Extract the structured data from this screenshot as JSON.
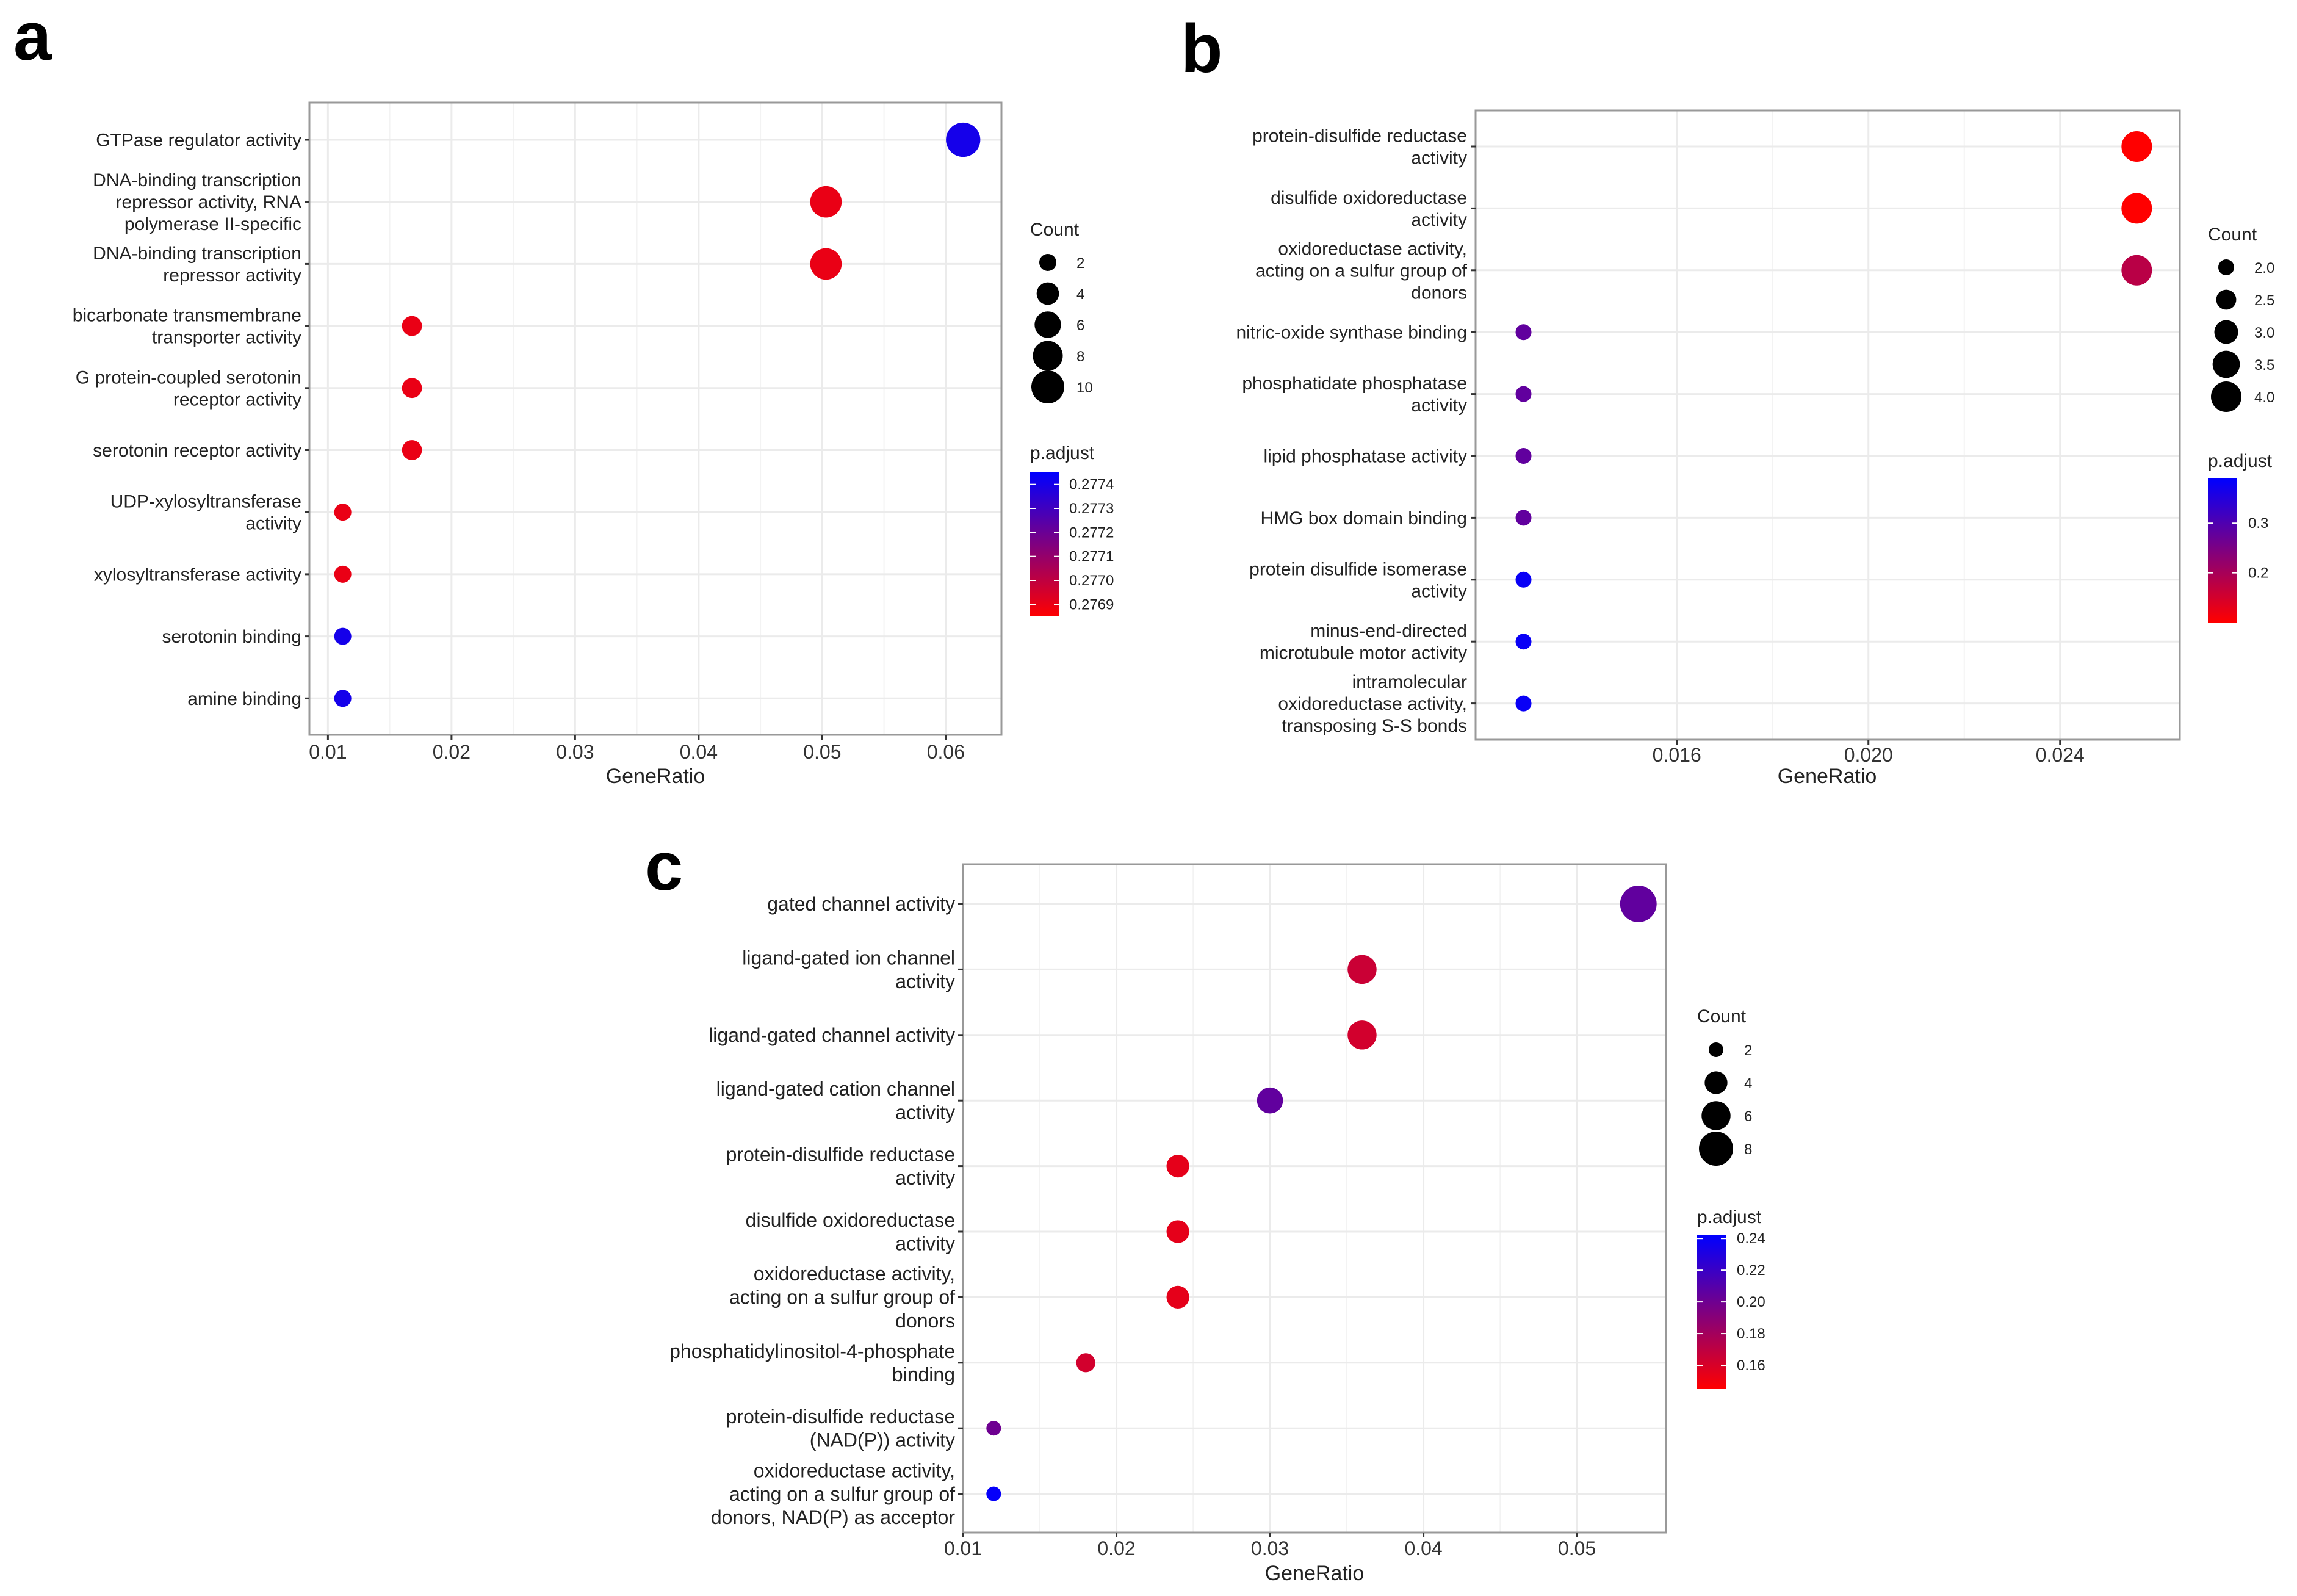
{
  "chart_data": [
    {
      "panel": "a",
      "type": "scatter",
      "xlabel": "GeneRatio",
      "xlim": [
        0.0085,
        0.0645
      ],
      "xticks": [
        0.01,
        0.02,
        0.03,
        0.04,
        0.05,
        0.06
      ],
      "xtick_labels": [
        "0.01",
        "0.02",
        "0.03",
        "0.04",
        "0.05",
        "0.06"
      ],
      "grid": true,
      "categories": [
        [
          "GTPase regulator activity"
        ],
        [
          "DNA-binding transcription",
          "repressor activity, RNA",
          "polymerase II-specific"
        ],
        [
          "DNA-binding transcription",
          "repressor activity"
        ],
        [
          "bicarbonate transmembrane",
          "transporter activity"
        ],
        [
          "G protein-coupled serotonin",
          "receptor activity"
        ],
        [
          "serotonin receptor activity"
        ],
        [
          "UDP-xylosyltransferase",
          "activity"
        ],
        [
          "xylosyltransferase activity"
        ],
        [
          "serotonin binding"
        ],
        [
          "amine binding"
        ]
      ],
      "x": [
        0.0614,
        0.0503,
        0.0503,
        0.0168,
        0.0168,
        0.0168,
        0.0112,
        0.0112,
        0.0112,
        0.0112
      ],
      "count": [
        11,
        9,
        9,
        3,
        3,
        3,
        2,
        2,
        2,
        2
      ],
      "p_adjust": [
        0.2774,
        0.2769,
        0.2769,
        0.2769,
        0.2769,
        0.2769,
        0.2769,
        0.2769,
        0.2774,
        0.2774
      ],
      "size_legend": {
        "title": "Count",
        "values": [
          2,
          4,
          6,
          8,
          10
        ],
        "labels": [
          "2",
          "4",
          "6",
          "8",
          "10"
        ]
      },
      "color_legend": {
        "title": "p.adjust",
        "min": 0.27685,
        "max": 0.27745,
        "ticks": [
          0.2774,
          0.2773,
          0.2772,
          0.2771,
          0.277,
          0.2769
        ],
        "labels": [
          "0.2774",
          "0.2773",
          "0.2772",
          "0.2771",
          "0.2770",
          "0.2769"
        ]
      }
    },
    {
      "panel": "b",
      "type": "scatter",
      "xlabel": "GeneRatio",
      "xlim": [
        0.0118,
        0.0265
      ],
      "xticks": [
        0.016,
        0.02,
        0.024
      ],
      "xtick_labels": [
        "0.016",
        "0.020",
        "0.024"
      ],
      "grid": true,
      "categories": [
        [
          "protein-disulfide reductase",
          "activity"
        ],
        [
          "disulfide oxidoreductase",
          "activity"
        ],
        [
          "oxidoreductase activity,",
          "acting on a sulfur group of",
          "donors"
        ],
        [
          "nitric-oxide synthase binding"
        ],
        [
          "phosphatidate phosphatase",
          "activity"
        ],
        [
          "lipid phosphatase activity"
        ],
        [
          "HMG box domain binding"
        ],
        [
          "protein disulfide isomerase",
          "activity"
        ],
        [
          "minus-end-directed",
          "microtubule motor activity"
        ],
        [
          "intramolecular",
          "oxidoreductase activity,",
          "transposing S-S bonds"
        ]
      ],
      "x": [
        0.0256,
        0.0256,
        0.0256,
        0.0128,
        0.0128,
        0.0128,
        0.0128,
        0.0128,
        0.0128,
        0.0128
      ],
      "count": [
        4,
        4,
        4,
        2,
        2,
        2,
        2,
        2,
        2,
        2
      ],
      "p_adjust": [
        0.1,
        0.1,
        0.18,
        0.28,
        0.28,
        0.28,
        0.28,
        0.38,
        0.38,
        0.38
      ],
      "size_legend": {
        "title": "Count",
        "values": [
          2.0,
          2.5,
          3.0,
          3.5,
          4.0
        ],
        "labels": [
          "2.0",
          "2.5",
          "3.0",
          "3.5",
          "4.0"
        ]
      },
      "color_legend": {
        "title": "p.adjust",
        "min": 0.1,
        "max": 0.39,
        "ticks": [
          0.3,
          0.2
        ],
        "labels": [
          "0.3",
          "0.2"
        ]
      }
    },
    {
      "panel": "c",
      "type": "scatter",
      "xlabel": "GeneRatio",
      "xlim": [
        0.01,
        0.0558
      ],
      "xticks": [
        0.01,
        0.02,
        0.03,
        0.04,
        0.05
      ],
      "xtick_labels": [
        "0.01",
        "0.02",
        "0.03",
        "0.04",
        "0.05"
      ],
      "grid": true,
      "categories": [
        [
          "gated channel activity"
        ],
        [
          "ligand-gated ion channel",
          "activity"
        ],
        [
          "ligand-gated channel activity"
        ],
        [
          "ligand-gated cation channel",
          "activity"
        ],
        [
          "protein-disulfide reductase",
          "activity"
        ],
        [
          "disulfide oxidoreductase",
          "activity"
        ],
        [
          "oxidoreductase activity,",
          "acting on a sulfur group of",
          "donors"
        ],
        [
          "phosphatidylinositol-4-phosphate",
          "binding"
        ],
        [
          "protein-disulfide reductase",
          "(NAD(P)) activity"
        ],
        [
          "oxidoreductase activity,",
          "acting on a sulfur group of",
          "donors, NAD(P) as acceptor"
        ]
      ],
      "x": [
        0.054,
        0.036,
        0.036,
        0.03,
        0.024,
        0.024,
        0.024,
        0.018,
        0.012,
        0.012
      ],
      "count": [
        9,
        6,
        6,
        5,
        4,
        4,
        4,
        3,
        2,
        2
      ],
      "p_adjust": [
        0.205,
        0.165,
        0.162,
        0.205,
        0.155,
        0.155,
        0.155,
        0.162,
        0.2,
        0.24
      ],
      "size_legend": {
        "title": "Count",
        "values": [
          2,
          4,
          6,
          8
        ],
        "labels": [
          "2",
          "4",
          "6",
          "8"
        ]
      },
      "color_legend": {
        "title": "p.adjust",
        "min": 0.145,
        "max": 0.242,
        "ticks": [
          0.24,
          0.22,
          0.2,
          0.18,
          0.16
        ],
        "labels": [
          "0.24",
          "0.22",
          "0.20",
          "0.18",
          "0.16"
        ]
      }
    }
  ],
  "colors": {
    "low": "#ff0000",
    "high": "#0000ff",
    "grid": "#ebebeb",
    "frame": "#999999"
  }
}
